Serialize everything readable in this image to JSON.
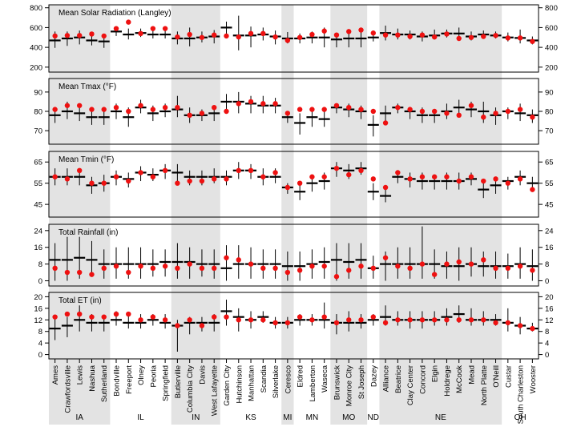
{
  "chart_data": {
    "type": "scatter",
    "description_note": "Five stacked panels comparing station means (red points) vs. modeled means with range bars (black cross markers).",
    "sites": [
      "Ames",
      "Crawfordsville",
      "Lewis",
      "Nashua",
      "Sutherland",
      "Bondville",
      "Freeport",
      "Olney",
      "Peoria",
      "Springfield",
      "Butlerville",
      "Columbia City",
      "Davis",
      "West Lafayette",
      "Garden City",
      "Hutchinson",
      "Manhattan",
      "Scandia",
      "Silverlake",
      "Ceresco",
      "Eldred",
      "Lamberton",
      "Waseca",
      "Brunswick",
      "Monroe City",
      "St Joseph",
      "Dazey",
      "Alliance",
      "Beatrice",
      "Clay Center",
      "Concord",
      "Elgin",
      "Holdrege",
      "McCook",
      "Mead",
      "North Platte",
      "O'Neill",
      "Custar",
      "South Charleston",
      "Wooster"
    ],
    "states": [
      {
        "name": "IA",
        "count": 5,
        "shaded": true
      },
      {
        "name": "IL",
        "count": 5,
        "shaded": false
      },
      {
        "name": "IN",
        "count": 4,
        "shaded": true
      },
      {
        "name": "KS",
        "count": 5,
        "shaded": false
      },
      {
        "name": "MI",
        "count": 1,
        "shaded": true
      },
      {
        "name": "MN",
        "count": 3,
        "shaded": false
      },
      {
        "name": "MO",
        "count": 3,
        "shaded": true
      },
      {
        "name": "ND",
        "count": 1,
        "shaded": false
      },
      {
        "name": "NE",
        "count": 10,
        "shaded": true
      },
      {
        "name": "OH",
        "count": 3,
        "shaded": false
      }
    ],
    "panels": [
      {
        "title": "Mean Solar Radiation (Langley)",
        "ylim": [
          150,
          830
        ],
        "ticks": [
          200,
          400,
          600,
          800
        ],
        "tick_labels": [
          "200",
          "400",
          "600",
          "800"
        ],
        "points": [
          515,
          520,
          520,
          535,
          515,
          590,
          655,
          540,
          590,
          590,
          505,
          530,
          500,
          525,
          515,
          505,
          540,
          540,
          505,
          470,
          500,
          530,
          565,
          525,
          560,
          575,
          545,
          525,
          525,
          510,
          525,
          505,
          535,
          490,
          500,
          510,
          520,
          495,
          495,
          460
        ],
        "centers": [
          470,
          490,
          500,
          470,
          460,
          560,
          530,
          545,
          530,
          530,
          490,
          490,
          500,
          510,
          600,
          520,
          520,
          530,
          510,
          490,
          490,
          500,
          500,
          480,
          490,
          490,
          500,
          545,
          530,
          530,
          510,
          520,
          540,
          540,
          510,
          530,
          520,
          500,
          495,
          470
        ],
        "lows": [
          395,
          415,
          430,
          420,
          395,
          515,
          480,
          505,
          490,
          490,
          430,
          410,
          450,
          440,
          520,
          370,
          400,
          470,
          430,
          440,
          440,
          440,
          400,
          400,
          400,
          400,
          460,
          470,
          480,
          480,
          460,
          480,
          500,
          480,
          470,
          490,
          490,
          460,
          440,
          430
        ],
        "highs": [
          560,
          560,
          570,
          520,
          535,
          610,
          590,
          590,
          580,
          580,
          560,
          600,
          560,
          575,
          660,
          720,
          610,
          600,
          570,
          555,
          540,
          560,
          600,
          530,
          570,
          590,
          560,
          620,
          590,
          570,
          560,
          580,
          580,
          600,
          560,
          570,
          560,
          550,
          580,
          510
        ]
      },
      {
        "title": "Mean Tmax (°F)",
        "ylim": [
          63,
          97
        ],
        "ticks": [
          70,
          80,
          90
        ],
        "tick_labels": [
          "70",
          "80",
          "90"
        ],
        "points": [
          81,
          83,
          83,
          81,
          81,
          82,
          80,
          83,
          81,
          82,
          82,
          78,
          79,
          82,
          80,
          84,
          85,
          84,
          84,
          79,
          81,
          81,
          81,
          83,
          82,
          81,
          80,
          74,
          82,
          81,
          80,
          80,
          79,
          78,
          83,
          77,
          79,
          80,
          81,
          77
        ],
        "centers": [
          78,
          80,
          79,
          77,
          77,
          80,
          77,
          82,
          79,
          80,
          81,
          78,
          78,
          79,
          85,
          85,
          84,
          83,
          83,
          77,
          74,
          77,
          76,
          82,
          81,
          80,
          73,
          79,
          82,
          80,
          78,
          78,
          80,
          82,
          81,
          80,
          78,
          80,
          79,
          78
        ],
        "lows": [
          74,
          76,
          75,
          73,
          73,
          76,
          72,
          79,
          75,
          77,
          77,
          74,
          75,
          75,
          80,
          79,
          79,
          79,
          79,
          74,
          68,
          72,
          72,
          79,
          77,
          76,
          67,
          74,
          79,
          76,
          74,
          74,
          76,
          78,
          77,
          74,
          73,
          76,
          75,
          74
        ],
        "highs": [
          82,
          85,
          84,
          82,
          82,
          84,
          82,
          86,
          83,
          84,
          88,
          82,
          81,
          83,
          89,
          90,
          88,
          88,
          87,
          80,
          79,
          81,
          80,
          84,
          84,
          83,
          78,
          83,
          84,
          82,
          82,
          81,
          84,
          86,
          85,
          85,
          82,
          82,
          84,
          81
        ]
      },
      {
        "title": "Mean Tmin (°F)",
        "ylim": [
          39,
          70
        ],
        "ticks": [
          45,
          55,
          65
        ],
        "tick_labels": [
          "45",
          "55",
          "65"
        ],
        "points": [
          58,
          57,
          61,
          55,
          55,
          58,
          56,
          60,
          58,
          61,
          55,
          56,
          56,
          57,
          57,
          61,
          61,
          58,
          60,
          53,
          55,
          58,
          58,
          62,
          59,
          61,
          57,
          53,
          60,
          57,
          58,
          58,
          58,
          56,
          58,
          56,
          57,
          55,
          57,
          52
        ],
        "centers": [
          58,
          58,
          58,
          54,
          55,
          58,
          57,
          60,
          59,
          61,
          60,
          58,
          58,
          58,
          58,
          61,
          61,
          58,
          58,
          53,
          51,
          55,
          56,
          62,
          61,
          62,
          51,
          49,
          58,
          57,
          56,
          56,
          56,
          56,
          57,
          52,
          54,
          56,
          58,
          55
        ],
        "lows": [
          54,
          54,
          54,
          50,
          51,
          54,
          53,
          56,
          56,
          57,
          55,
          54,
          54,
          55,
          54,
          57,
          57,
          54,
          55,
          50,
          47,
          51,
          52,
          58,
          57,
          59,
          47,
          46,
          55,
          53,
          52,
          52,
          52,
          52,
          54,
          48,
          50,
          52,
          54,
          51
        ],
        "highs": [
          62,
          62,
          62,
          58,
          59,
          61,
          60,
          63,
          62,
          64,
          64,
          61,
          61,
          62,
          61,
          65,
          64,
          62,
          62,
          55,
          54,
          58,
          60,
          65,
          64,
          65,
          55,
          53,
          61,
          60,
          60,
          59,
          60,
          60,
          60,
          56,
          58,
          58,
          61,
          58
        ]
      },
      {
        "title": "Total Rainfall (in)",
        "ylim": [
          -2.5,
          27
        ],
        "ticks": [
          0,
          8,
          16,
          24
        ],
        "tick_labels": [
          "0",
          "8",
          "16",
          "24"
        ],
        "points": [
          6,
          4,
          4,
          3,
          6,
          7,
          4,
          7,
          6,
          7,
          6,
          8,
          6,
          6,
          11,
          10,
          8,
          6,
          6,
          4,
          5,
          7,
          7,
          2,
          5,
          7,
          6,
          11,
          7,
          6,
          8,
          3,
          8,
          9,
          8,
          10,
          6,
          6,
          7,
          5
        ],
        "centers": [
          10,
          10,
          11,
          10,
          8,
          8,
          8,
          8,
          8,
          9,
          9,
          9,
          8,
          8,
          6,
          8,
          8,
          8,
          8,
          7,
          7,
          8,
          9,
          10,
          9,
          10,
          6,
          8,
          8,
          8,
          8,
          8,
          7,
          7,
          8,
          7,
          7,
          7,
          8,
          7
        ],
        "lows": [
          0,
          0,
          1,
          2,
          1,
          1,
          1,
          1,
          2,
          2,
          1,
          1,
          2,
          1,
          0,
          1,
          1,
          1,
          1,
          0,
          0,
          1,
          1,
          0,
          1,
          1,
          1,
          0,
          1,
          1,
          1,
          1,
          1,
          0,
          2,
          2,
          1,
          1,
          1,
          0
        ],
        "highs": [
          18,
          21,
          21,
          19,
          15,
          16,
          16,
          16,
          15,
          15,
          18,
          16,
          15,
          15,
          17,
          17,
          16,
          15,
          15,
          14,
          14,
          15,
          16,
          18,
          18,
          18,
          12,
          14,
          16,
          16,
          26,
          15,
          14,
          16,
          16,
          14,
          14,
          13,
          16,
          15
        ]
      },
      {
        "title": "Total ET (in)",
        "ylim": [
          -1.5,
          21.5
        ],
        "ticks": [
          0,
          4,
          8,
          12,
          16,
          20
        ],
        "tick_labels": [
          "0",
          "4",
          "8",
          "12",
          "16",
          "20"
        ],
        "points": [
          13,
          14,
          14,
          13,
          13,
          14,
          14,
          12,
          13,
          12,
          10,
          12,
          10,
          13,
          13,
          12,
          12,
          12,
          11,
          11,
          13,
          12,
          13,
          11,
          12,
          12,
          13,
          11,
          12,
          12,
          12,
          12,
          12,
          12,
          12,
          12,
          11,
          11,
          10,
          9
        ],
        "centers": [
          9,
          10,
          12,
          11,
          11,
          12,
          11,
          11,
          12,
          11,
          10,
          11,
          11,
          11,
          15,
          13,
          12,
          13,
          11,
          11,
          12,
          12,
          12,
          11,
          11,
          11,
          12,
          13,
          12,
          12,
          12,
          12,
          13,
          14,
          12,
          12,
          12,
          11,
          10,
          9
        ],
        "lows": [
          5,
          6,
          8,
          8,
          8,
          10,
          9,
          9,
          10,
          9,
          1,
          7,
          8,
          8,
          10,
          8,
          9,
          11,
          9,
          9,
          10,
          10,
          9,
          7,
          8,
          9,
          10,
          10,
          10,
          9,
          9,
          10,
          10,
          11,
          10,
          10,
          10,
          8,
          7,
          8
        ],
        "highs": [
          13,
          13,
          17,
          14,
          13,
          15,
          14,
          14,
          14,
          14,
          12,
          13,
          13,
          14,
          19,
          16,
          15,
          15,
          13,
          13,
          14,
          14,
          18,
          14,
          15,
          14,
          14,
          17,
          15,
          15,
          15,
          15,
          16,
          17,
          16,
          15,
          14,
          16,
          13,
          11
        ]
      }
    ]
  }
}
